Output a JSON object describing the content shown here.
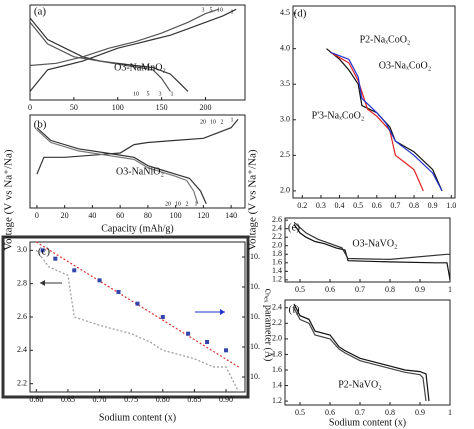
{
  "chart_data": [
    {
      "type": "line",
      "label": "(a)",
      "material": "O3-NaMnO₂",
      "xlim": [
        0,
        245
      ],
      "ylim": [
        1.8,
        4.0
      ],
      "xticks": [
        0,
        50,
        100,
        150,
        200
      ],
      "annotations": [
        "3",
        "5",
        "10",
        "1",
        "10",
        "5",
        "3",
        "1"
      ],
      "series": [
        {
          "color": "#333333",
          "x": [
            0,
            20,
            40,
            60,
            80,
            100,
            120,
            140,
            160,
            180,
            200,
            220,
            235
          ],
          "values": [
            2.0,
            2.5,
            2.6,
            2.7,
            2.85,
            3.0,
            3.1,
            3.2,
            3.3,
            3.45,
            3.6,
            3.75,
            3.9
          ]
        },
        {
          "color": "#333333",
          "x": [
            0,
            20,
            40,
            60,
            80,
            100,
            120,
            140,
            160,
            170,
            180
          ],
          "values": [
            3.7,
            3.2,
            3.0,
            2.8,
            2.7,
            2.65,
            2.6,
            2.55,
            2.4,
            2.2,
            2.0
          ]
        },
        {
          "color": "#555555",
          "x": [
            0,
            30,
            60,
            90,
            120,
            150,
            180,
            200,
            215
          ],
          "values": [
            2.6,
            2.65,
            2.8,
            3.0,
            3.15,
            3.35,
            3.6,
            3.8,
            3.9
          ]
        },
        {
          "color": "#555555",
          "x": [
            0,
            20,
            50,
            80,
            110,
            140,
            150,
            160
          ],
          "values": [
            3.6,
            3.1,
            2.8,
            2.7,
            2.6,
            2.5,
            2.3,
            2.0
          ]
        }
      ]
    },
    {
      "type": "line",
      "label": "(b)",
      "material": "O3-NaNiO₂",
      "ylabel": "Voltage (V vs Na⁺/Na)",
      "xlabel": "Capacity (mAh/g)",
      "xlim": [
        -5,
        150
      ],
      "ylim": [
        1.8,
        4.0
      ],
      "xticks": [
        0,
        20,
        40,
        60,
        80,
        100,
        120,
        140
      ],
      "annotations": [
        "20",
        "10",
        "2",
        "1",
        "20",
        "10",
        "2",
        "1"
      ],
      "series": [
        {
          "color": "#333333",
          "x": [
            0,
            5,
            20,
            40,
            60,
            70,
            80,
            100,
            120,
            140,
            145
          ],
          "values": [
            2.6,
            3.0,
            3.0,
            3.05,
            3.1,
            3.3,
            3.35,
            3.4,
            3.45,
            3.7,
            3.9
          ]
        },
        {
          "color": "#333333",
          "x": [
            0,
            10,
            30,
            50,
            70,
            80,
            90,
            100,
            110,
            118,
            122
          ],
          "values": [
            3.7,
            3.4,
            3.2,
            3.1,
            3.0,
            2.8,
            2.7,
            2.6,
            2.5,
            2.2,
            1.9
          ]
        },
        {
          "color": "#777777",
          "x": [
            0,
            10,
            30,
            50,
            70,
            80,
            90,
            100,
            108,
            113,
            116
          ],
          "values": [
            3.65,
            3.35,
            3.15,
            3.05,
            2.95,
            2.75,
            2.65,
            2.55,
            2.45,
            2.2,
            1.9
          ]
        }
      ]
    },
    {
      "type": "line",
      "label": "(c)",
      "xlabel": "Sodium content (x)",
      "y2label": "cₕₑₓ parameter (Å)",
      "xlim": [
        0.59,
        0.93
      ],
      "ylim": [
        2.15,
        3.05
      ],
      "y2lim": [
        10.35,
        10.85
      ],
      "xticks": [
        {
          "value": 0.6,
          "label": "0.60"
        },
        0.65,
        {
          "value": 0.7,
          "label": "0.70"
        },
        0.75,
        {
          "value": 0.8,
          "label": "0.80"
        },
        0.85,
        {
          "value": 0.9,
          "label": "0.90"
        }
      ],
      "yticks": [
        2.2,
        2.4,
        2.6,
        2.8,
        {
          "value": 3,
          "label": "3.0"
        }
      ],
      "y2ticks": [
        {
          "value": 10.8,
          "label": "10."
        },
        {
          "value": 10.7,
          "label": "10."
        },
        {
          "value": 10.6,
          "label": "10."
        },
        {
          "value": 10.5,
          "label": "10."
        },
        {
          "value": 10.4,
          "label": "10."
        }
      ],
      "series": [
        {
          "color": "#999999",
          "dash": true,
          "x": [
            0.6,
            0.62,
            0.65,
            0.66,
            0.7,
            0.75,
            0.78,
            0.8,
            0.85,
            0.88,
            0.9,
            0.92
          ],
          "values": [
            3.0,
            2.9,
            2.85,
            2.6,
            2.55,
            2.5,
            2.45,
            2.4,
            2.35,
            2.3,
            2.3,
            2.15
          ]
        },
        {
          "color": "#e03030",
          "dash": true,
          "x": [
            0.6,
            0.92
          ],
          "values": [
            3.05,
            2.3
          ]
        },
        {
          "color": "#3344aa",
          "marker": "square",
          "x": [
            0.61,
            0.63,
            0.66,
            0.7,
            0.73,
            0.76,
            0.8,
            0.84,
            0.87,
            0.9
          ],
          "values": [
            3.0,
            2.95,
            2.88,
            2.82,
            2.75,
            2.68,
            2.6,
            2.5,
            2.45,
            2.4
          ]
        }
      ]
    },
    {
      "type": "line",
      "label": "(d)",
      "xlim": [
        0.15,
        1.02
      ],
      "ylim": [
        1.9,
        4.6
      ],
      "xticks": [
        0.2,
        0.3,
        0.4,
        0.5,
        0.6,
        0.7,
        0.8,
        0.9,
        {
          "value": 1,
          "label": "1.0"
        }
      ],
      "yticks": [
        {
          "value": 2,
          "label": "2.0"
        },
        2.5,
        {
          "value": 3,
          "label": "3.0"
        },
        3.5,
        {
          "value": 4,
          "label": "4.0"
        },
        4.5
      ],
      "series": [
        {
          "name": "O3-NaₓCoO₂",
          "color": "#111111",
          "x": [
            0.33,
            0.4,
            0.45,
            0.5,
            0.52,
            0.6,
            0.67,
            0.7,
            0.8,
            0.9,
            0.95
          ],
          "values": [
            4.0,
            3.85,
            3.7,
            3.5,
            3.2,
            3.1,
            2.9,
            2.7,
            2.55,
            2.3,
            2.0
          ]
        },
        {
          "name": "P2-NaₓCoO₂",
          "color": "#e02020",
          "x": [
            0.35,
            0.45,
            0.5,
            0.55,
            0.6,
            0.67,
            0.7,
            0.75,
            0.8,
            0.85
          ],
          "values": [
            3.95,
            3.8,
            3.55,
            3.15,
            3.05,
            2.85,
            2.5,
            2.4,
            2.3,
            2.0
          ]
        },
        {
          "name": "P'3-NaₓCoO₂",
          "color": "#2233cc",
          "x": [
            0.35,
            0.45,
            0.5,
            0.52,
            0.6,
            0.65,
            0.7,
            0.8,
            0.9,
            0.95
          ],
          "values": [
            3.95,
            3.85,
            3.6,
            3.3,
            3.1,
            2.95,
            2.7,
            2.5,
            2.25,
            2.0
          ]
        }
      ]
    },
    {
      "type": "line",
      "label": "(e)",
      "material": "O3-NaVO₂",
      "ylabel": "Voltage (V vs Na⁺/Na)",
      "xlim": [
        0.45,
        1.0
      ],
      "ylim": [
        1.15,
        2.65
      ],
      "xticks": [
        0.5,
        0.6,
        0.7,
        0.8,
        0.9,
        1
      ],
      "yticks": [
        1.2,
        1.4,
        1.6,
        1.8,
        {
          "value": 2,
          "label": "2.0"
        },
        2.2,
        2.4,
        2.6
      ],
      "series": [
        {
          "color": "#111111",
          "x": [
            0.48,
            0.5,
            0.52,
            0.55,
            0.58,
            0.6,
            0.62,
            0.65,
            0.66,
            0.8,
            0.95,
            0.99,
            0.995,
            1.0
          ],
          "values": [
            2.5,
            2.3,
            2.2,
            2.1,
            2.05,
            2.0,
            1.95,
            1.9,
            1.65,
            1.62,
            1.6,
            1.6,
            1.4,
            1.2
          ]
        },
        {
          "color": "#333333",
          "x": [
            0.48,
            0.52,
            0.56,
            0.6,
            0.64,
            0.66,
            0.8,
            0.99,
            1.0
          ],
          "values": [
            2.55,
            2.3,
            2.15,
            2.05,
            1.95,
            1.7,
            1.68,
            1.8,
            1.8
          ]
        }
      ]
    },
    {
      "type": "line",
      "label": "(f)",
      "material": "P2-NaVO₂",
      "xlabel": "Sodium content (x)",
      "xlim": [
        0.45,
        1.0
      ],
      "ylim": [
        1.15,
        2.5
      ],
      "xticks": [
        0.5,
        0.6,
        0.7,
        0.8,
        0.9,
        1
      ],
      "yticks": [
        1.2,
        1.4,
        1.6,
        1.8,
        {
          "value": 2,
          "label": "2.0"
        },
        2.2,
        2.4
      ],
      "series": [
        {
          "color": "#111111",
          "x": [
            0.48,
            0.5,
            0.53,
            0.55,
            0.6,
            0.63,
            0.65,
            0.7,
            0.75,
            0.8,
            0.85,
            0.9,
            0.92,
            0.93
          ],
          "values": [
            2.45,
            2.3,
            2.25,
            2.1,
            2.05,
            1.9,
            1.85,
            1.75,
            1.7,
            1.65,
            1.6,
            1.58,
            1.55,
            1.2
          ]
        },
        {
          "color": "#444444",
          "x": [
            0.48,
            0.5,
            0.53,
            0.55,
            0.6,
            0.63,
            0.65,
            0.7,
            0.75,
            0.8,
            0.85,
            0.9,
            0.91,
            0.92
          ],
          "values": [
            2.4,
            2.25,
            2.2,
            2.05,
            2.0,
            1.87,
            1.82,
            1.72,
            1.67,
            1.62,
            1.57,
            1.54,
            1.5,
            1.2
          ]
        }
      ]
    }
  ]
}
